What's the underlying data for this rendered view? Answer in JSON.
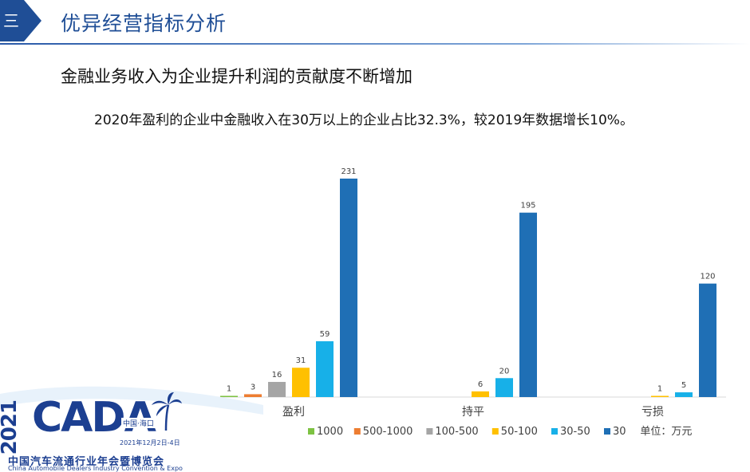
{
  "header": {
    "section_number": "三",
    "title": "优异经营指标分析"
  },
  "subtitle": "金融业务收入为企业提升利润的贡献度不断增加",
  "note": "2020年盈利的企业中金融收入在30万以上的企业占比32.3%，较2019年数据增长10%。",
  "chart_data": {
    "type": "bar",
    "categories": [
      "盈利",
      "持平",
      "亏损"
    ],
    "series": [
      {
        "name": "1000",
        "color": "#7dc242",
        "values": [
          1,
          0,
          0
        ]
      },
      {
        "name": "500-1000",
        "color": "#ed7d31",
        "values": [
          3,
          0,
          0
        ]
      },
      {
        "name": "100-500",
        "color": "#a5a5a5",
        "values": [
          16,
          0,
          0
        ]
      },
      {
        "name": "50-100",
        "color": "#ffc000",
        "values": [
          31,
          6,
          1
        ]
      },
      {
        "name": "30-50",
        "color": "#17b0e8",
        "values": [
          59,
          20,
          5
        ]
      },
      {
        "name": "30",
        "color": "#1f6fb5",
        "values": [
          231,
          195,
          120
        ]
      }
    ],
    "ylim": [
      0,
      231
    ],
    "legend_position": "bottom",
    "unit_label": "单位：万元",
    "grid": false
  },
  "logo": {
    "year": "2021",
    "brand": "CADA",
    "location": "中国·海口",
    "date": "2021年12月2日-4日",
    "name_cn": "中国汽车流通行业年会暨博览会",
    "name_en": "China Automobile Dealers Industry Convention & Expo"
  }
}
